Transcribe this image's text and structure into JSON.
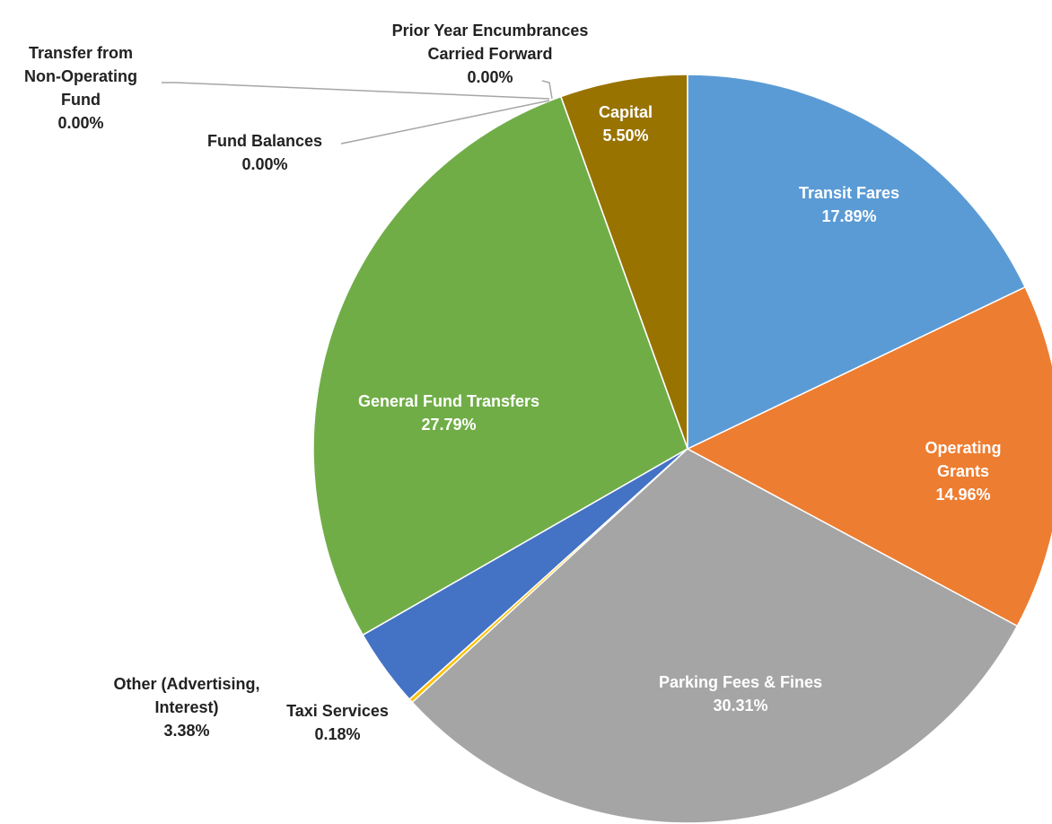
{
  "chart_data": {
    "type": "pie",
    "categories": [
      "Transit Fares",
      "Operating Grants",
      "Parking Fees & Fines",
      "Taxi Services",
      "Other (Advertising,\nInterest)",
      "General Fund Transfers",
      "Fund Balances",
      "Transfer from\nNon-Operating\nFund",
      "Prior Year Encumbrances\nCarried Forward",
      "Capital"
    ],
    "values": [
      17.89,
      14.96,
      30.31,
      0.18,
      3.38,
      27.79,
      0.0,
      0.0,
      0.0,
      5.5
    ],
    "value_labels": [
      "17.89%",
      "14.96%",
      "30.31%",
      "0.18%",
      "3.38%",
      "27.79%",
      "0.00%",
      "0.00%",
      "0.00%",
      "5.50%"
    ],
    "colors": [
      "#5b9bd5",
      "#ed7d31",
      "#a5a5a5",
      "#ffc000",
      "#4472c4",
      "#70ad47",
      "#264478",
      "#9e480e",
      "#636363",
      "#997300"
    ]
  }
}
